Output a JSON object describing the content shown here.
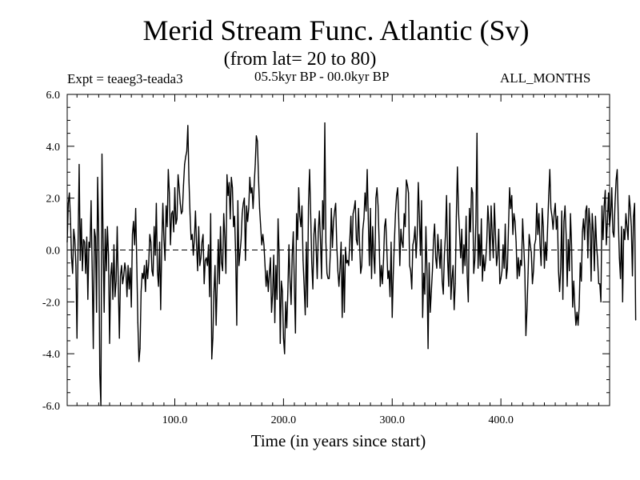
{
  "header": {
    "title": "Merid Stream Func. Atlantic (Sv)",
    "subtitle": "(from lat= 20 to 80)",
    "experiment": "Expt = teaeg3-teada3",
    "period": "05.5kyr BP - 00.0kyr BP",
    "months": "ALL_MONTHS"
  },
  "chart_data": {
    "type": "line",
    "title": "Merid Stream Func. Atlantic (Sv)",
    "xlabel": "Time (in years since start)",
    "ylabel": "",
    "xlim": [
      1,
      500
    ],
    "ylim": [
      -6.0,
      6.0
    ],
    "x_ticks": [
      100,
      200,
      300,
      400
    ],
    "x_tick_labels": [
      "100.0",
      "200.0",
      "300.0",
      "400.0"
    ],
    "y_ticks": [
      -6,
      -4,
      -2,
      0,
      2,
      4,
      6
    ],
    "y_tick_labels": [
      "-6.0",
      "-4.0",
      "-2.0",
      "0.0",
      "2.0",
      "4.0",
      "6.0"
    ],
    "zero_line": "dashed",
    "grid": false,
    "series": [
      {
        "name": "Merid Stream Func. Atlantic",
        "x_start": 1,
        "x_step": 1,
        "values": [
          0.3,
          1.8,
          2.2,
          1.2,
          -0.3,
          -0.9,
          0.8,
          0.4,
          -0.6,
          -3.4,
          0.2,
          3.3,
          -0.4,
          1.2,
          -0.8,
          0.4,
          0.3,
          -0.9,
          0.5,
          -1.9,
          0.3,
          0.1,
          1.9,
          -0.8,
          -3.8,
          0.8,
          0.5,
          -2.4,
          2.8,
          0.6,
          -4.8,
          -6.0,
          3.7,
          0.5,
          -2.4,
          0.8,
          -0.8,
          0.9,
          -0.2,
          -3.6,
          -1.0,
          -0.5,
          -1.9,
          0.2,
          -1.8,
          -1.2,
          0.9,
          -1.3,
          -3.4,
          -1.0,
          -0.6,
          -1.3,
          -1.0,
          -0.5,
          -0.8,
          -1.8,
          -0.6,
          -1.5,
          -0.7,
          -2.2,
          0.6,
          1.1,
          0.2,
          1.6,
          -0.5,
          -2.8,
          -4.3,
          -3.8,
          -1.6,
          -0.9,
          -1.1,
          -0.6,
          -1.6,
          -0.4,
          -1.1,
          -0.5,
          0.6,
          0.3,
          -0.8,
          -1.0,
          0.9,
          -0.2,
          1.8,
          -0.8,
          -1.4,
          0.3,
          -2.3,
          0.2,
          1.8,
          0.4,
          -0.4,
          1.7,
          0.9,
          3.1,
          2.2,
          0.2,
          1.4,
          1.5,
          0.7,
          2.4,
          1.0,
          1.2,
          2.9,
          2.4,
          1.8,
          1.4,
          1.5,
          2.5,
          3.3,
          3.6,
          3.8,
          4.8,
          2.7,
          1.4,
          0.4,
          0.6,
          -0.2,
          0.4,
          1.5,
          0.2,
          -0.8,
          0.9,
          -0.6,
          -0.3,
          0.3,
          0.6,
          -1.3,
          -0.4,
          -0.3,
          -0.6,
          0.2,
          -1.8,
          1.4,
          -4.2,
          -3.4,
          -1.6,
          -0.6,
          -2.9,
          -1.3,
          0.4,
          -1.3,
          0.9,
          -0.5,
          -0.8,
          1.4,
          0.5,
          -0.9,
          2.9,
          2.1,
          2.6,
          1.2,
          2.8,
          2.4,
          0.9,
          1.3,
          -0.2,
          -2.9,
          1.9,
          -0.6,
          -0.1,
          0.4,
          1.4,
          1.8,
          2.0,
          -0.4,
          1.7,
          1.1,
          1.6,
          2.8,
          2.2,
          2.4,
          1.6,
          2.5,
          3.3,
          4.4,
          4.2,
          2.8,
          1.6,
          0.9,
          0.2,
          0.6,
          0.2,
          -0.6,
          -1.4,
          -0.8,
          -1.6,
          -0.9,
          -0.3,
          -2.4,
          -1.7,
          -0.2,
          -2.8,
          -0.6,
          -1.9,
          1.2,
          -0.2,
          -3.6,
          -1.2,
          -1.6,
          -3.4,
          -4.0,
          -2.0,
          -3.0,
          -1.6,
          0.2,
          -1.2,
          -2.1,
          -0.2,
          0.7,
          -1.4,
          -3.2,
          1.4,
          0.4,
          2.4,
          1.3,
          0.9,
          1.7,
          -0.4,
          -1.4,
          -2.5,
          0.3,
          -2.2,
          1.8,
          3.1,
          1.4,
          -0.5,
          -1.5,
          0.6,
          1.2,
          0.1,
          -1.1,
          0.7,
          1.5,
          0.4,
          -1.1,
          1.9,
          0.8,
          4.9,
          0.3,
          -0.9,
          -1.1,
          -1.1,
          -0.2,
          1.6,
          0.1,
          1.1,
          1.5,
          1.8,
          0.2,
          -0.8,
          -1.4,
          -0.7,
          0.3,
          -2.6,
          -0.2,
          -2.4,
          0.1,
          -0.5,
          -0.4,
          -0.6,
          0.4,
          1.3,
          -0.4,
          1.4,
          1.6,
          1.9,
          0.4,
          0.2,
          1.6,
          0.2,
          -0.9,
          -0.6,
          0.8,
          1.2,
          2.2,
          1.5,
          3.1,
          1.2,
          -0.6,
          1.6,
          -1.1,
          0.9,
          -0.2,
          -0.9,
          2.0,
          2.4,
          1.7,
          0.3,
          -1.4,
          -0.6,
          -1.3,
          -0.4,
          0.9,
          1.2,
          0.1,
          -1.1,
          -0.8,
          -1.8,
          0.3,
          -2.6,
          -0.9,
          0.3,
          1.4,
          2.1,
          2.4,
          1.2,
          -0.6,
          0.8,
          0.3,
          0.1,
          1.4,
          0.9,
          2.7,
          2.5,
          2.2,
          -0.6,
          -0.8,
          -1.5,
          0.2,
          0.4,
          0.9,
          -0.3,
          0.6,
          2.6,
          1.3,
          -0.2,
          1.9,
          -2.6,
          -0.9,
          -1.7,
          0.9,
          -0.8,
          -3.8,
          -0.5,
          -2.4,
          -1.6,
          -0.8,
          0.4,
          1.0,
          -0.3,
          -0.7,
          0.6,
          -0.1,
          -0.7,
          0.4,
          -1.2,
          -1.7,
          -0.2,
          0.6,
          2.1,
          -0.4,
          -1.4,
          1.8,
          -1.9,
          -1.1,
          -0.6,
          -2.3,
          -1.3,
          1.3,
          3.2,
          1.5,
          0.6,
          -0.3,
          0.8,
          -0.9,
          0.2,
          -0.6,
          1.3,
          -1.0,
          -2.0,
          1.6,
          0.7,
          2.4,
          2.2,
          -0.9,
          -0.4,
          1.1,
          4.5,
          -0.7,
          0.6,
          -0.6,
          1.2,
          -1.2,
          -0.2,
          -0.8,
          -0.4,
          0.3,
          1.7,
          1.0,
          -0.4,
          1.7,
          0.6,
          -0.3,
          1.8,
          0.6,
          -0.6,
          -0.2,
          0.8,
          -1.3,
          -1.1,
          -0.8,
          0.2,
          -0.7,
          1.0,
          -1.1,
          -0.7,
          0.9,
          2.4,
          1.6,
          2.1,
          0.6,
          1.4,
          1.1,
          0.3,
          -1.1,
          -0.3,
          -1.0,
          -0.4,
          -0.6,
          1.2,
          0.2,
          -0.8,
          -3.3,
          -2.3,
          -0.9,
          0.6,
          0.2,
          -0.1,
          -1.3,
          -0.8,
          0.2,
          0.4,
          1.8,
          0.6,
          1.4,
          0.2,
          -0.6,
          1.6,
          0.9,
          -0.7,
          0.3,
          -0.4,
          0.9,
          2.1,
          3.1,
          1.6,
          1.3,
          0.8,
          1.4,
          1.8,
          0.8,
          1.3,
          -0.8,
          -1.6,
          -0.7,
          1.5,
          -1.9,
          1.1,
          1.7,
          0.6,
          -1.4,
          0.4,
          -0.8,
          1.4,
          0.2,
          -2.2,
          -1.2,
          -2.2,
          -2.9,
          -2.4,
          -2.9,
          -2.2,
          -0.5,
          -1.2,
          0.7,
          1.2,
          0.4,
          1.5,
          1.7,
          -0.3,
          1.6,
          1.0,
          -1.2,
          1.4,
          0.7,
          -0.8,
          1.3,
          0.2,
          -0.4,
          -1.3,
          -1.3,
          -2.0,
          1.7,
          0.4,
          1.7,
          2.3,
          0.2,
          1.1,
          2.2,
          0.9,
          1.4,
          2.4,
          0.7,
          0.5,
          1.8,
          2.7,
          3.1,
          1.2,
          -0.3,
          -1.1,
          0.9,
          -2.0,
          0.8,
          0.4,
          1.4,
          0.9,
          0.4,
          2.1,
          1.6,
          0.9,
          -1.0,
          1.3,
          1.8,
          -2.7
        ]
      }
    ]
  }
}
